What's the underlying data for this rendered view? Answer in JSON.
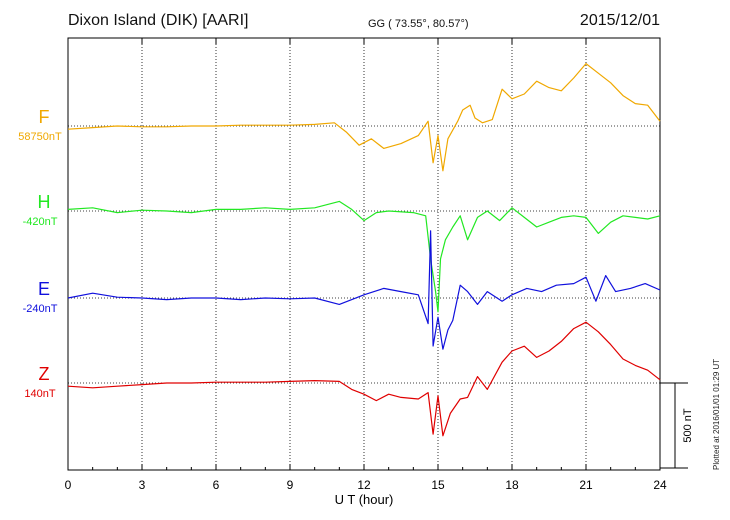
{
  "header": {
    "station": "Dixon Island (DIK)  [AARI]",
    "coords": "GG ( 73.55°,  80.57°)",
    "date": "2015/12/01"
  },
  "footer_note": "Plotted at 2016/01/01 01:29 UT",
  "scale_bar_label": "500 nT",
  "chart_data": {
    "type": "line",
    "xlabel": "U T (hour)",
    "xlim": [
      0,
      24
    ],
    "xticks": [
      0,
      3,
      6,
      9,
      12,
      15,
      18,
      21,
      24
    ],
    "scale_nT": 500,
    "grid": true,
    "series": [
      {
        "name": "F",
        "baseline_label": "58750nT",
        "color": "#f0a800",
        "baseline_offset_nT": 0,
        "points": [
          [
            0,
            -20
          ],
          [
            1,
            -10
          ],
          [
            2,
            0
          ],
          [
            3,
            -5
          ],
          [
            4,
            -5
          ],
          [
            5,
            0
          ],
          [
            6,
            0
          ],
          [
            7,
            5
          ],
          [
            8,
            5
          ],
          [
            9,
            5
          ],
          [
            10,
            10
          ],
          [
            10.8,
            20
          ],
          [
            11.3,
            -40
          ],
          [
            11.8,
            -120
          ],
          [
            12.3,
            -80
          ],
          [
            12.8,
            -140
          ],
          [
            13.5,
            -110
          ],
          [
            14.2,
            -60
          ],
          [
            14.6,
            30
          ],
          [
            14.8,
            -230
          ],
          [
            15.0,
            -60
          ],
          [
            15.2,
            -280
          ],
          [
            15.4,
            -80
          ],
          [
            15.8,
            30
          ],
          [
            16.0,
            100
          ],
          [
            16.3,
            130
          ],
          [
            16.5,
            50
          ],
          [
            16.8,
            20
          ],
          [
            17.2,
            40
          ],
          [
            17.6,
            230
          ],
          [
            18.0,
            170
          ],
          [
            18.5,
            200
          ],
          [
            19.0,
            280
          ],
          [
            19.5,
            240
          ],
          [
            20.0,
            220
          ],
          [
            20.5,
            300
          ],
          [
            21.0,
            390
          ],
          [
            21.5,
            330
          ],
          [
            22.0,
            270
          ],
          [
            22.5,
            190
          ],
          [
            23.0,
            140
          ],
          [
            23.5,
            130
          ],
          [
            24,
            30
          ]
        ]
      },
      {
        "name": "H",
        "baseline_label": "-420nT",
        "color": "#22e822",
        "baseline_offset_nT": 0,
        "points": [
          [
            0,
            10
          ],
          [
            1,
            20
          ],
          [
            2,
            -10
          ],
          [
            3,
            5
          ],
          [
            4,
            0
          ],
          [
            5,
            -10
          ],
          [
            6,
            10
          ],
          [
            7,
            10
          ],
          [
            8,
            20
          ],
          [
            9,
            10
          ],
          [
            10,
            20
          ],
          [
            11,
            60
          ],
          [
            11.5,
            10
          ],
          [
            12,
            -60
          ],
          [
            12.5,
            -10
          ],
          [
            13,
            0
          ],
          [
            14,
            -10
          ],
          [
            14.5,
            -30
          ],
          [
            14.7,
            -300
          ],
          [
            14.9,
            -500
          ],
          [
            15.0,
            -630
          ],
          [
            15.1,
            -300
          ],
          [
            15.3,
            -180
          ],
          [
            15.6,
            -100
          ],
          [
            15.9,
            -30
          ],
          [
            16.2,
            -180
          ],
          [
            16.6,
            -40
          ],
          [
            17.0,
            0
          ],
          [
            17.5,
            -60
          ],
          [
            18.0,
            20
          ],
          [
            18.5,
            -40
          ],
          [
            19.0,
            -100
          ],
          [
            19.5,
            -70
          ],
          [
            20.0,
            -40
          ],
          [
            20.5,
            -30
          ],
          [
            21.0,
            -40
          ],
          [
            21.5,
            -140
          ],
          [
            22.0,
            -70
          ],
          [
            22.5,
            -30
          ],
          [
            23.0,
            -40
          ],
          [
            23.5,
            -50
          ],
          [
            24,
            -30
          ]
        ]
      },
      {
        "name": "E",
        "baseline_label": "-240nT",
        "color": "#1010dd",
        "baseline_offset_nT": 0,
        "points": [
          [
            0,
            0
          ],
          [
            1,
            30
          ],
          [
            2,
            5
          ],
          [
            3,
            0
          ],
          [
            4,
            -10
          ],
          [
            5,
            0
          ],
          [
            6,
            0
          ],
          [
            7,
            -10
          ],
          [
            8,
            0
          ],
          [
            9,
            -5
          ],
          [
            10,
            0
          ],
          [
            11,
            -40
          ],
          [
            12,
            20
          ],
          [
            12.8,
            60
          ],
          [
            13.5,
            40
          ],
          [
            14.2,
            20
          ],
          [
            14.6,
            -160
          ],
          [
            14.7,
            420
          ],
          [
            14.8,
            -300
          ],
          [
            15.0,
            -120
          ],
          [
            15.2,
            -320
          ],
          [
            15.4,
            -200
          ],
          [
            15.6,
            -140
          ],
          [
            15.9,
            80
          ],
          [
            16.2,
            40
          ],
          [
            16.6,
            -40
          ],
          [
            17.0,
            40
          ],
          [
            17.6,
            -20
          ],
          [
            18.0,
            20
          ],
          [
            18.6,
            60
          ],
          [
            19.2,
            40
          ],
          [
            19.8,
            80
          ],
          [
            20.5,
            90
          ],
          [
            21.0,
            130
          ],
          [
            21.4,
            -20
          ],
          [
            21.8,
            140
          ],
          [
            22.2,
            40
          ],
          [
            22.8,
            60
          ],
          [
            23.4,
            90
          ],
          [
            24,
            50
          ]
        ]
      },
      {
        "name": "Z",
        "baseline_label": "140nT",
        "color": "#e00000",
        "baseline_offset_nT": 0,
        "points": [
          [
            0,
            -20
          ],
          [
            1,
            -30
          ],
          [
            2,
            -20
          ],
          [
            3,
            -10
          ],
          [
            4,
            0
          ],
          [
            5,
            0
          ],
          [
            6,
            5
          ],
          [
            7,
            5
          ],
          [
            8,
            5
          ],
          [
            9,
            10
          ],
          [
            10,
            15
          ],
          [
            11,
            10
          ],
          [
            11.5,
            -40
          ],
          [
            12,
            -70
          ],
          [
            12.5,
            -110
          ],
          [
            13,
            -70
          ],
          [
            13.5,
            -90
          ],
          [
            14.2,
            -100
          ],
          [
            14.6,
            -60
          ],
          [
            14.8,
            -320
          ],
          [
            15.0,
            -80
          ],
          [
            15.2,
            -330
          ],
          [
            15.5,
            -190
          ],
          [
            15.9,
            -100
          ],
          [
            16.2,
            -90
          ],
          [
            16.6,
            40
          ],
          [
            17.0,
            -40
          ],
          [
            17.6,
            130
          ],
          [
            18.0,
            200
          ],
          [
            18.5,
            230
          ],
          [
            19.0,
            160
          ],
          [
            19.5,
            200
          ],
          [
            20.0,
            260
          ],
          [
            20.5,
            340
          ],
          [
            21.0,
            380
          ],
          [
            21.5,
            320
          ],
          [
            22.0,
            240
          ],
          [
            22.5,
            150
          ],
          [
            23.0,
            110
          ],
          [
            23.5,
            80
          ],
          [
            24,
            20
          ]
        ]
      }
    ]
  }
}
